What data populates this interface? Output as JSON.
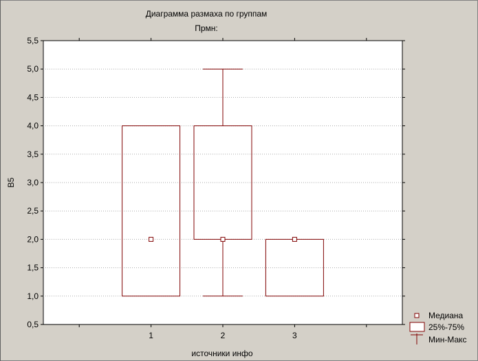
{
  "chart_data": {
    "type": "box",
    "title": "Диаграмма размаха по группам",
    "subtitle": "Прмн:",
    "xlabel": "источники инфо",
    "ylabel": "B5",
    "categories": [
      "1",
      "2",
      "3"
    ],
    "ylim": [
      0.5,
      5.5
    ],
    "yticks": [
      "0,5",
      "1,0",
      "1,5",
      "2,0",
      "2,5",
      "3,0",
      "3,5",
      "4,0",
      "4,5",
      "5,0",
      "5,5"
    ],
    "grid": true,
    "legend_position": "bottom-right",
    "series": [
      {
        "category": "1",
        "median": 2.0,
        "q1": 1.0,
        "q3": 4.0,
        "min": 1.0,
        "max": 4.0
      },
      {
        "category": "2",
        "median": 2.0,
        "q1": 2.0,
        "q3": 4.0,
        "min": 1.0,
        "max": 5.0
      },
      {
        "category": "3",
        "median": 2.0,
        "q1": 1.0,
        "q3": 2.0,
        "min": 1.0,
        "max": 2.0
      }
    ],
    "legend": {
      "median": "Медиана",
      "box": "25%-75%",
      "whisker": "Мин-Макс"
    },
    "colors": {
      "box": "#800000",
      "grid": "#aaaaaa",
      "plot_bg": "#ffffff",
      "window_bg": "#d4d0c8"
    }
  }
}
